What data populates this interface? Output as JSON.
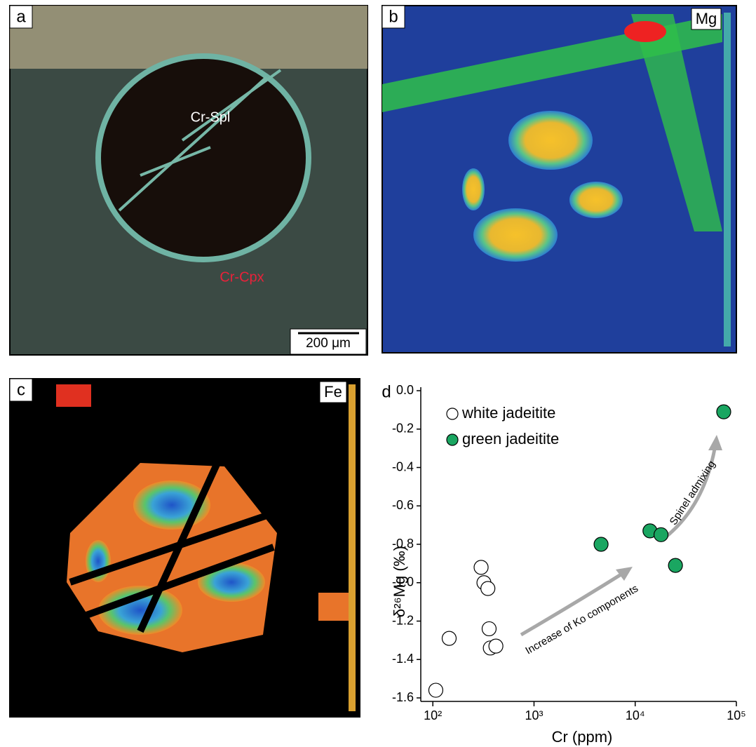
{
  "panels": {
    "a": {
      "letter": "a",
      "label_spl": "Cr-Spl",
      "label_cpx": "Cr-Cpx",
      "scale_bar": "200 μm"
    },
    "b": {
      "letter": "b",
      "element": "Mg"
    },
    "c": {
      "letter": "c",
      "element": "Fe"
    }
  },
  "chart_data": {
    "type": "scatter",
    "letter": "d",
    "x_label": "Cr (ppm)",
    "y_label": "δ²⁶Mg (‰)",
    "x_scale": "log",
    "xlim": [
      76,
      100000
    ],
    "xticks": [
      {
        "value": 100,
        "label": "10²"
      },
      {
        "value": 1000,
        "label": "10³"
      },
      {
        "value": 10000,
        "label": "10⁴"
      },
      {
        "value": 100000,
        "label": "10⁵"
      }
    ],
    "ylim": [
      -1.6,
      0.0
    ],
    "yticks": [
      {
        "value": -1.6,
        "label": "-1.6"
      },
      {
        "value": -1.4,
        "label": "-1.4"
      },
      {
        "value": -1.2,
        "label": "-1.2"
      },
      {
        "value": -1.0,
        "label": "-1.0"
      },
      {
        "value": -0.8,
        "label": "-0.8"
      },
      {
        "value": -0.6,
        "label": "-0.6"
      },
      {
        "value": -0.4,
        "label": "-0.4"
      },
      {
        "value": -0.2,
        "label": "-0.2"
      },
      {
        "value": 0.0,
        "label": "0.0"
      }
    ],
    "legend": "top-left",
    "annotations": [
      "Increase of Ko components",
      "Spinel admixing"
    ],
    "series": [
      {
        "name": "white jadeitite",
        "color": "#ffffff",
        "x": [
          107,
          145,
          300,
          320,
          350,
          360,
          370,
          420
        ],
        "values": [
          -1.56,
          -1.29,
          -0.92,
          -1.0,
          -1.03,
          -1.24,
          -1.34,
          -1.33
        ]
      },
      {
        "name": "green jadeitite",
        "color": "#1aa661",
        "x": [
          4600,
          14000,
          18000,
          25000,
          75000
        ],
        "values": [
          -0.8,
          -0.73,
          -0.75,
          -0.91,
          -0.11
        ]
      }
    ]
  }
}
